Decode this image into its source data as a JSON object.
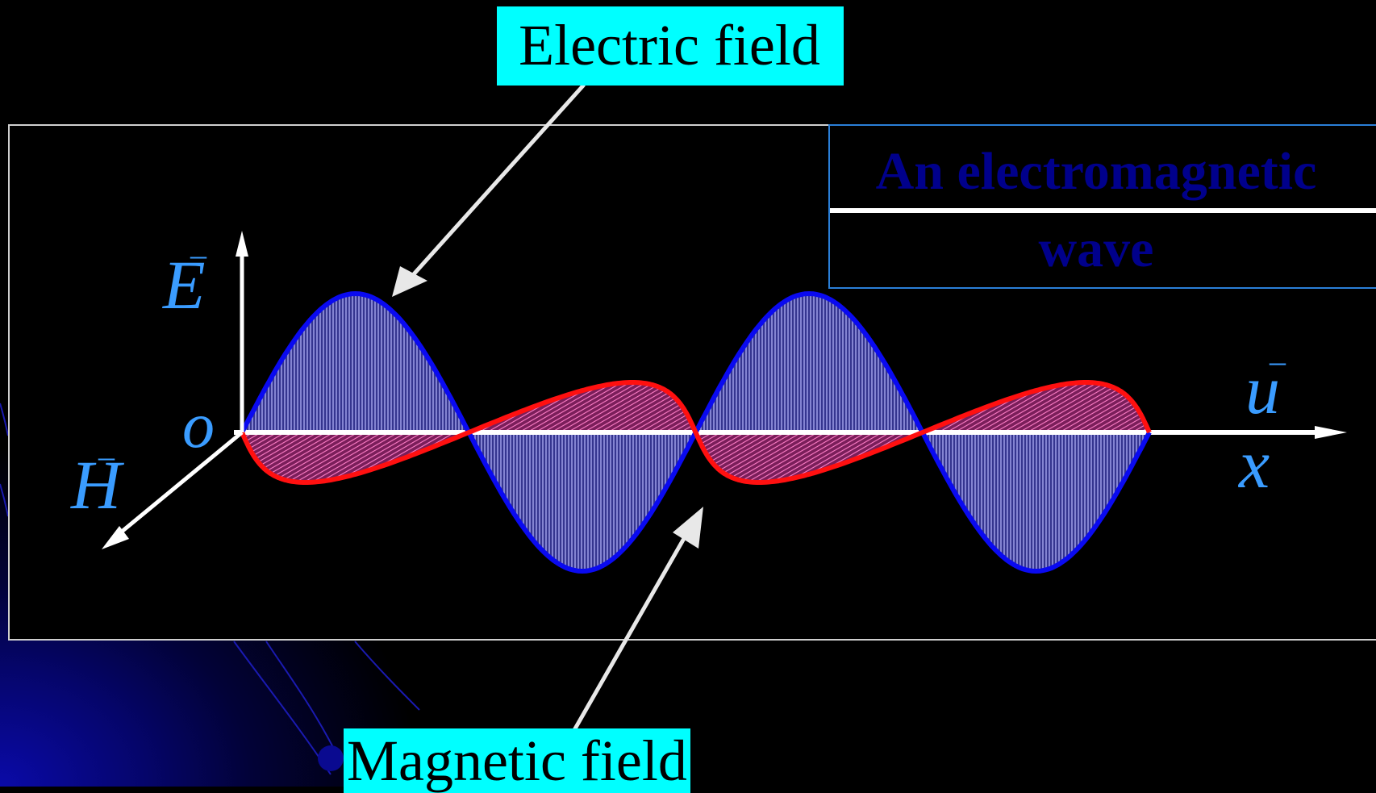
{
  "labels": {
    "electric_field": "Electric field",
    "magnetic_field": "Magnetic field"
  },
  "title": {
    "line1": "An electromagnetic",
    "line2": "wave"
  },
  "axes": {
    "e_vector": "E",
    "h_vector": "H",
    "origin": "o",
    "u_vector": "u",
    "x_axis": "x"
  },
  "colors": {
    "electric_wave": "#0a0af0",
    "electric_fill": "#6a6ad8",
    "magnetic_wave": "#ff1010",
    "magnetic_fill": "#a0306a",
    "label_background": "#00ffff",
    "symbol_color": "#3a9cff",
    "title_color": "#00008b"
  }
}
